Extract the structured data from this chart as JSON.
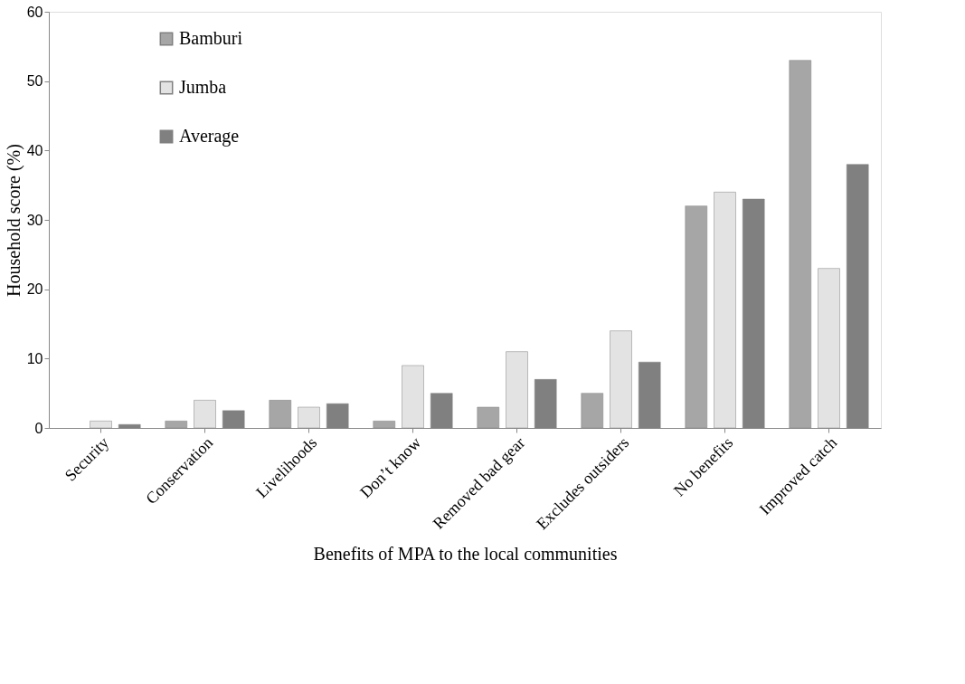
{
  "chart_data": {
    "type": "bar",
    "xlabel": "Benefits of MPA to the local communities",
    "ylabel": "Household score (%)",
    "categories": [
      "Security",
      "Conservation",
      "Livelihoods",
      "Don’t know",
      "Removed bad gear",
      "Excludes outsiders",
      "No benefits",
      "Improved catch"
    ],
    "series": [
      {
        "name": "Bamburi",
        "color": "#a6a6a6",
        "values": [
          0,
          1,
          4,
          1,
          3,
          5,
          32,
          53
        ]
      },
      {
        "name": "Jumba",
        "color": "#e3e3e3",
        "values": [
          1,
          4,
          3,
          9,
          11,
          14,
          34,
          23
        ]
      },
      {
        "name": "Average",
        "color": "#808080",
        "values": [
          0.5,
          2.5,
          3.5,
          5,
          7,
          9.5,
          33,
          38
        ]
      }
    ],
    "ylim": [
      0,
      60
    ],
    "yticks": [
      0,
      10,
      20,
      30,
      40,
      50,
      60
    ],
    "grid": false,
    "legend": "top left"
  }
}
